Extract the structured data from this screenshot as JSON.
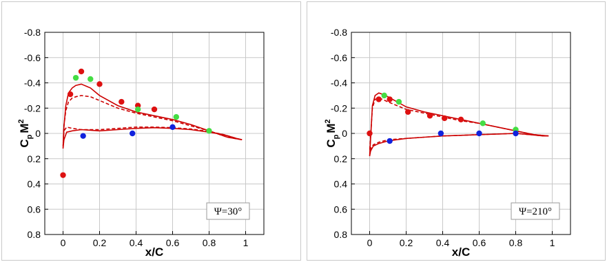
{
  "chart_data": [
    {
      "type": "line",
      "annotation": "Ψ=30°",
      "xlabel": "x/C",
      "ylabel_main": "C",
      "ylabel_sub": "p",
      "ylabel_tail": "M",
      "ylabel_sup": "2",
      "xlim": [
        -0.1,
        1.1
      ],
      "ylim": [
        -0.8,
        0.8
      ],
      "y_inverted": true,
      "grid": true,
      "xticks": [
        "0",
        "0.2",
        "0.4",
        "0.6",
        "0.8",
        "1"
      ],
      "yticks": [
        "-0.8",
        "-0.6",
        "-0.4",
        "-0.2",
        "0",
        "0.2",
        "0.4",
        "0.6",
        "0.8"
      ],
      "ytick_values": [
        -0.8,
        -0.6,
        -0.4,
        -0.2,
        0,
        0.2,
        0.4,
        0.6,
        0.8
      ],
      "xtick_values": [
        0,
        0.2,
        0.4,
        0.6,
        0.8,
        1
      ],
      "series": [
        {
          "style": "solid",
          "color": "#cc0000",
          "x": [
            0.98,
            0.9,
            0.8,
            0.7,
            0.6,
            0.5,
            0.4,
            0.3,
            0.2,
            0.15,
            0.1,
            0.07,
            0.05,
            0.03,
            0.015,
            0.005,
            0,
            0.005,
            0.02,
            0.05,
            0.1,
            0.2,
            0.3,
            0.4,
            0.5,
            0.6,
            0.7,
            0.8,
            0.88,
            0.95,
            0.98
          ],
          "y": [
            0.05,
            0.03,
            -0.02,
            -0.07,
            -0.11,
            -0.14,
            -0.17,
            -0.22,
            -0.3,
            -0.36,
            -0.39,
            -0.38,
            -0.36,
            -0.32,
            -0.22,
            -0.05,
            0.12,
            0.05,
            -0.01,
            -0.02,
            -0.03,
            -0.02,
            -0.03,
            -0.04,
            -0.045,
            -0.04,
            -0.03,
            -0.01,
            0.01,
            0.04,
            0.05
          ]
        },
        {
          "style": "dashed",
          "color": "#cc0000",
          "x": [
            0.98,
            0.9,
            0.8,
            0.7,
            0.6,
            0.5,
            0.4,
            0.3,
            0.2,
            0.15,
            0.1,
            0.07,
            0.05,
            0.03,
            0.015,
            0.005,
            0,
            0.005,
            0.02,
            0.05,
            0.1,
            0.2,
            0.3,
            0.4,
            0.5,
            0.6,
            0.7,
            0.8,
            0.88,
            0.95,
            0.98
          ],
          "y": [
            0.05,
            0.03,
            -0.02,
            -0.06,
            -0.1,
            -0.13,
            -0.16,
            -0.2,
            -0.26,
            -0.29,
            -0.3,
            -0.29,
            -0.28,
            -0.25,
            -0.18,
            -0.06,
            0.1,
            -0.02,
            -0.05,
            -0.04,
            -0.03,
            -0.03,
            -0.04,
            -0.05,
            -0.05,
            -0.045,
            -0.035,
            -0.015,
            0.01,
            0.04,
            0.05
          ]
        }
      ],
      "points": [
        {
          "x": 0.0,
          "y": 0.33,
          "color": "#dd1111"
        },
        {
          "x": 0.04,
          "y": -0.31,
          "color": "#dd1111"
        },
        {
          "x": 0.07,
          "y": -0.44,
          "color": "#44dd44"
        },
        {
          "x": 0.1,
          "y": -0.49,
          "color": "#dd1111"
        },
        {
          "x": 0.15,
          "y": -0.43,
          "color": "#44dd44"
        },
        {
          "x": 0.2,
          "y": -0.39,
          "color": "#dd1111"
        },
        {
          "x": 0.32,
          "y": -0.25,
          "color": "#dd1111"
        },
        {
          "x": 0.41,
          "y": -0.22,
          "color": "#dd1111"
        },
        {
          "x": 0.41,
          "y": -0.19,
          "color": "#44dd44"
        },
        {
          "x": 0.5,
          "y": -0.19,
          "color": "#dd1111"
        },
        {
          "x": 0.62,
          "y": -0.13,
          "color": "#44dd44"
        },
        {
          "x": 0.8,
          "y": -0.02,
          "color": "#44dd44"
        },
        {
          "x": 0.11,
          "y": 0.02,
          "color": "#1122dd"
        },
        {
          "x": 0.38,
          "y": 0.0,
          "color": "#1122dd"
        },
        {
          "x": 0.6,
          "y": -0.05,
          "color": "#1122dd"
        }
      ]
    },
    {
      "type": "line",
      "annotation": "Ψ=210°",
      "xlabel": "x/C",
      "ylabel_main": "C",
      "ylabel_sub": "p",
      "ylabel_tail": "M",
      "ylabel_sup": "2",
      "xlim": [
        -0.1,
        1.1
      ],
      "ylim": [
        -0.8,
        0.8
      ],
      "y_inverted": true,
      "grid": true,
      "xticks": [
        "0",
        "0.2",
        "0.4",
        "0.6",
        "0.8",
        "1"
      ],
      "yticks": [
        "-0.8",
        "-0.6",
        "-0.4",
        "-0.2",
        "0",
        "0.2",
        "0.4",
        "0.6",
        "0.8"
      ],
      "ytick_values": [
        -0.8,
        -0.6,
        -0.4,
        -0.2,
        0,
        0.2,
        0.4,
        0.6,
        0.8
      ],
      "xtick_values": [
        0,
        0.2,
        0.4,
        0.6,
        0.8,
        1
      ],
      "series": [
        {
          "style": "solid",
          "color": "#cc0000",
          "x": [
            0.98,
            0.9,
            0.8,
            0.7,
            0.6,
            0.5,
            0.4,
            0.3,
            0.2,
            0.15,
            0.1,
            0.07,
            0.05,
            0.03,
            0.015,
            0.005,
            0,
            0.005,
            0.02,
            0.05,
            0.1,
            0.2,
            0.3,
            0.4,
            0.5,
            0.6,
            0.7,
            0.8,
            0.88,
            0.95,
            0.98
          ],
          "y": [
            0.02,
            0.01,
            -0.02,
            -0.05,
            -0.08,
            -0.11,
            -0.14,
            -0.17,
            -0.21,
            -0.25,
            -0.29,
            -0.31,
            -0.32,
            -0.3,
            -0.22,
            0.05,
            0.18,
            0.14,
            0.1,
            0.08,
            0.06,
            0.04,
            0.03,
            0.02,
            0.015,
            0.01,
            0.005,
            0,
            0.01,
            0.02,
            0.02
          ]
        },
        {
          "style": "dashed",
          "color": "#cc0000",
          "x": [
            0.98,
            0.9,
            0.8,
            0.7,
            0.6,
            0.5,
            0.4,
            0.3,
            0.2,
            0.15,
            0.1,
            0.07,
            0.05,
            0.03,
            0.015,
            0.005,
            0,
            0.005,
            0.02,
            0.05,
            0.1,
            0.2,
            0.3,
            0.4,
            0.5,
            0.6,
            0.7,
            0.8,
            0.88,
            0.95,
            0.98
          ],
          "y": [
            0.02,
            0.01,
            -0.02,
            -0.05,
            -0.08,
            -0.1,
            -0.13,
            -0.16,
            -0.19,
            -0.22,
            -0.25,
            -0.27,
            -0.28,
            -0.27,
            -0.2,
            0.03,
            0.14,
            0.12,
            0.09,
            0.07,
            0.05,
            0.04,
            0.03,
            0.02,
            0.015,
            0.01,
            0.005,
            0,
            0.01,
            0.02,
            0.02
          ]
        }
      ],
      "points": [
        {
          "x": 0.0,
          "y": 0.0,
          "color": "#dd1111"
        },
        {
          "x": 0.05,
          "y": -0.27,
          "color": "#dd1111"
        },
        {
          "x": 0.08,
          "y": -0.3,
          "color": "#44dd44"
        },
        {
          "x": 0.11,
          "y": -0.27,
          "color": "#dd1111"
        },
        {
          "x": 0.16,
          "y": -0.25,
          "color": "#44dd44"
        },
        {
          "x": 0.21,
          "y": -0.17,
          "color": "#dd1111"
        },
        {
          "x": 0.33,
          "y": -0.14,
          "color": "#dd1111"
        },
        {
          "x": 0.41,
          "y": -0.12,
          "color": "#dd1111"
        },
        {
          "x": 0.5,
          "y": -0.11,
          "color": "#dd1111"
        },
        {
          "x": 0.62,
          "y": -0.08,
          "color": "#44dd44"
        },
        {
          "x": 0.8,
          "y": -0.03,
          "color": "#44dd44"
        },
        {
          "x": 0.11,
          "y": 0.06,
          "color": "#1122dd"
        },
        {
          "x": 0.39,
          "y": 0.0,
          "color": "#1122dd"
        },
        {
          "x": 0.6,
          "y": 0.0,
          "color": "#1122dd"
        },
        {
          "x": 0.8,
          "y": 0.0,
          "color": "#1122dd"
        }
      ]
    }
  ]
}
